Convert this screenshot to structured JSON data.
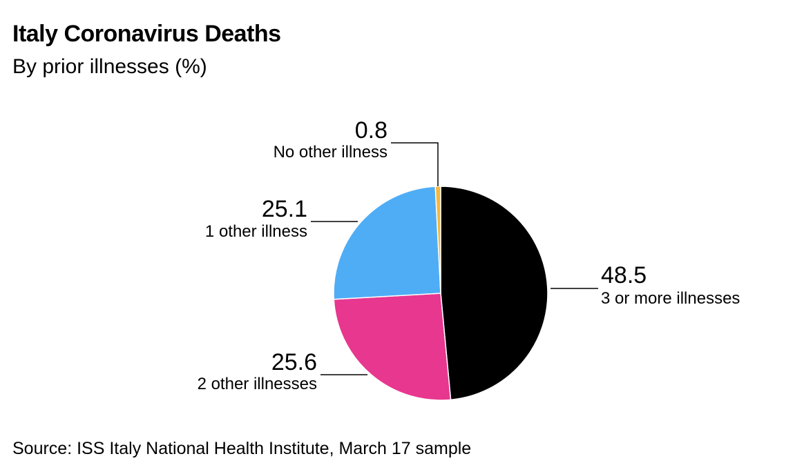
{
  "title": "Italy Coronavirus Deaths",
  "subtitle": "By prior illnesses (%)",
  "source": "Source: ISS Italy National Health Institute, March 17 sample",
  "chart_data": {
    "type": "pie",
    "title": "Italy Coronavirus Deaths",
    "subtitle": "By prior illnesses (%)",
    "slices": [
      {
        "label": "3 or more illnesses",
        "value": 48.5,
        "value_label": "48.5",
        "color": "#000000"
      },
      {
        "label": "2 other illnesses",
        "value": 25.6,
        "value_label": "25.6",
        "color": "#e8378f"
      },
      {
        "label": "1 other illness",
        "value": 25.1,
        "value_label": "25.1",
        "color": "#4fadf6"
      },
      {
        "label": "No other illness",
        "value": 0.8,
        "value_label": "0.8",
        "color": "#f5b73b"
      }
    ]
  }
}
